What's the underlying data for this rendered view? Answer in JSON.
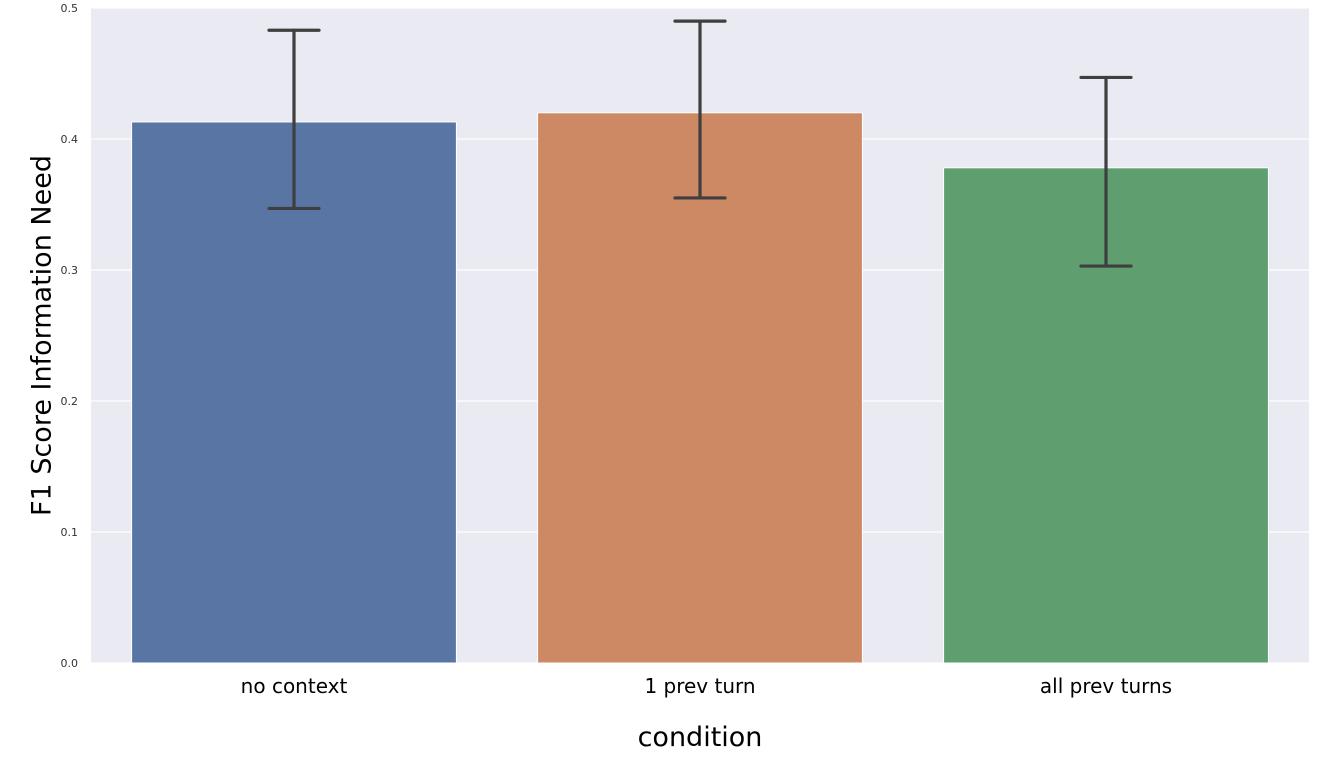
{
  "chart_data": {
    "type": "bar",
    "categories": [
      "no context",
      "1 prev turn",
      "all prev turns"
    ],
    "values": [
      0.413,
      0.42,
      0.378
    ],
    "error_bars": [
      {
        "low": 0.347,
        "high": 0.483
      },
      {
        "low": 0.355,
        "high": 0.49
      },
      {
        "low": 0.303,
        "high": 0.447
      }
    ],
    "colors": [
      "#5975a4",
      "#cc8963",
      "#5f9e6e"
    ],
    "background_color": "#eaeaf2",
    "grid": true,
    "grid_color": "#ffffff",
    "error_bar_color": "#3f3f3f",
    "xlabel": "condition",
    "ylabel": "F1 Score Information Need",
    "ylim": [
      0.0,
      0.5
    ],
    "yticks": [
      "0.0",
      "0.1",
      "0.2",
      "0.3",
      "0.4",
      "0.5"
    ]
  }
}
